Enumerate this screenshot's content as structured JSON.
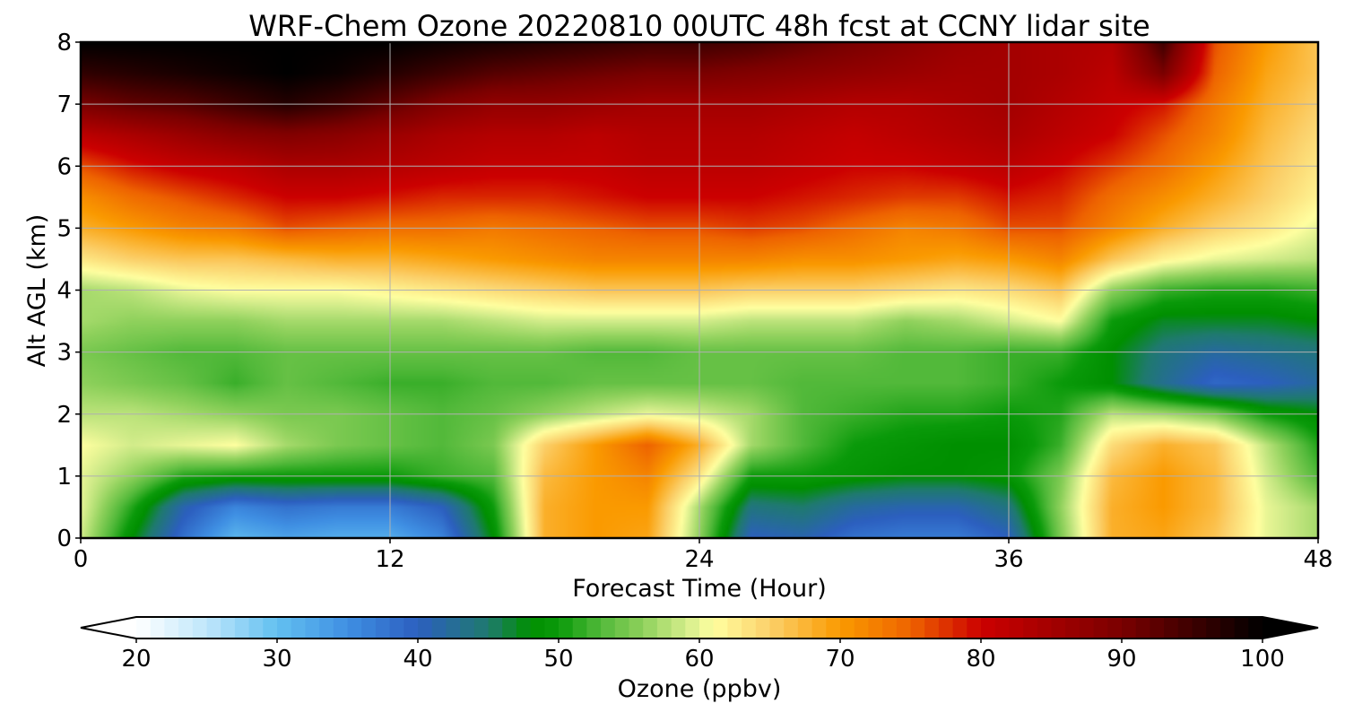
{
  "chart_data": {
    "type": "heatmap",
    "title": "WRF-Chem Ozone  20220810 00UTC 48h fcst at CCNY lidar site",
    "xlabel": "Forecast Time (Hour)",
    "ylabel": "Alt AGL (km)",
    "xlim": [
      0,
      48
    ],
    "ylim": [
      0,
      8
    ],
    "xticks": [
      0,
      12,
      24,
      36,
      48
    ],
    "yticks": [
      0,
      1,
      2,
      3,
      4,
      5,
      6,
      7,
      8
    ],
    "grid": true,
    "colorbar": {
      "label": "Ozone  (ppbv)",
      "range": [
        20,
        100
      ],
      "ticks": [
        20,
        30,
        40,
        50,
        60,
        70,
        80,
        90,
        100
      ],
      "extend": "both",
      "under_color": "#ffffff",
      "over_color": "#000000",
      "stops": [
        [
          20,
          "#ffffff"
        ],
        [
          25,
          "#bfe6fb"
        ],
        [
          30,
          "#62c0f0"
        ],
        [
          35,
          "#3f8fe3"
        ],
        [
          40,
          "#2c5fbf"
        ],
        [
          45,
          "#1f7a6e"
        ],
        [
          48,
          "#008f00"
        ],
        [
          50,
          "#0a9a0a"
        ],
        [
          53,
          "#52b93a"
        ],
        [
          56,
          "#8fd15c"
        ],
        [
          59,
          "#d2ec8a"
        ],
        [
          61,
          "#ffffa0"
        ],
        [
          65,
          "#fbd06a"
        ],
        [
          70,
          "#fa9a00"
        ],
        [
          75,
          "#ee6300"
        ],
        [
          80,
          "#cc0000"
        ],
        [
          90,
          "#7a0000"
        ],
        [
          100,
          "#000000"
        ]
      ]
    },
    "x": [
      0,
      2,
      4,
      6,
      8,
      10,
      12,
      14,
      16,
      18,
      20,
      22,
      24,
      26,
      28,
      30,
      32,
      34,
      36,
      38,
      40,
      42,
      44,
      46,
      48
    ],
    "y": [
      0,
      0.5,
      1,
      1.5,
      2,
      2.5,
      3,
      3.5,
      4,
      4.5,
      5,
      5.5,
      6,
      6.5,
      7,
      7.5,
      8
    ],
    "z": [
      [
        59,
        48,
        38,
        31,
        33,
        32,
        32,
        36,
        48,
        68,
        70,
        69,
        56,
        40,
        41,
        38,
        37,
        37,
        40,
        55,
        68,
        69,
        66,
        60,
        57
      ],
      [
        60,
        51,
        41,
        36,
        38,
        37,
        37,
        40,
        50,
        68,
        70,
        70,
        57,
        44,
        45,
        42,
        41,
        41,
        44,
        56,
        68,
        70,
        67,
        60,
        57
      ],
      [
        60,
        56,
        51,
        50,
        50,
        50,
        50,
        52,
        53,
        67,
        70,
        72,
        63,
        50,
        50,
        49,
        48,
        48,
        49,
        55,
        67,
        70,
        67,
        59,
        53
      ],
      [
        61,
        59,
        60,
        61,
        57,
        55,
        54,
        53,
        55,
        65,
        70,
        75,
        68,
        57,
        53,
        50,
        49,
        48,
        48,
        52,
        64,
        68,
        66,
        58,
        51
      ],
      [
        58,
        58,
        57,
        56,
        55,
        55,
        54,
        53,
        54,
        56,
        58,
        60,
        59,
        57,
        53,
        52,
        51,
        51,
        50,
        51,
        58,
        57,
        55,
        50,
        48
      ],
      [
        56,
        55,
        54,
        52,
        54,
        53,
        52,
        52,
        53,
        53,
        54,
        54,
        54,
        54,
        53,
        53,
        53,
        53,
        52,
        50,
        48,
        43,
        39,
        40,
        42
      ],
      [
        55,
        54,
        53,
        53,
        54,
        54,
        54,
        54,
        54,
        54,
        53,
        53,
        54,
        54,
        54,
        54,
        53,
        53,
        52,
        52,
        48,
        44,
        42,
        43,
        44
      ],
      [
        57,
        56,
        56,
        56,
        57,
        57,
        57,
        57,
        58,
        59,
        59,
        59,
        59,
        58,
        58,
        58,
        56,
        57,
        59,
        61,
        50,
        47,
        47,
        47,
        48
      ],
      [
        57,
        58,
        60,
        61,
        61,
        61,
        62,
        63,
        64,
        65,
        66,
        66,
        66,
        65,
        65,
        65,
        64,
        63,
        64,
        66,
        56,
        52,
        51,
        51,
        52
      ],
      [
        63,
        65,
        66,
        66,
        67,
        68,
        68,
        69,
        70,
        71,
        72,
        72,
        72,
        72,
        71,
        71,
        70,
        69,
        70,
        72,
        66,
        62,
        60,
        59,
        58
      ],
      [
        68,
        70,
        72,
        73,
        76,
        75,
        74,
        74,
        73,
        74,
        75,
        76,
        76,
        77,
        76,
        74,
        72,
        73,
        76,
        76,
        72,
        68,
        65,
        63,
        60
      ],
      [
        71,
        74,
        76,
        78,
        80,
        80,
        79,
        78,
        78,
        78,
        79,
        80,
        80,
        80,
        79,
        78,
        77,
        77,
        79,
        78,
        74,
        71,
        68,
        65,
        62
      ],
      [
        76,
        79,
        81,
        82,
        84,
        84,
        83,
        82,
        81,
        81,
        81,
        82,
        82,
        82,
        81,
        80,
        80,
        81,
        82,
        80,
        77,
        74,
        70,
        66,
        63
      ],
      [
        82,
        84,
        86,
        88,
        89,
        88,
        86,
        84,
        83,
        83,
        82,
        83,
        83,
        83,
        82,
        81,
        82,
        83,
        84,
        82,
        80,
        76,
        72,
        67,
        64
      ],
      [
        90,
        92,
        93,
        95,
        97,
        95,
        92,
        89,
        87,
        87,
        86,
        85,
        85,
        85,
        84,
        83,
        83,
        84,
        85,
        83,
        81,
        79,
        73,
        68,
        65
      ],
      [
        96,
        97,
        98,
        99,
        100,
        99,
        97,
        95,
        93,
        92,
        91,
        90,
        90,
        89,
        88,
        87,
        86,
        85,
        85,
        84,
        82,
        90,
        75,
        69,
        66
      ],
      [
        100,
        100,
        100,
        100,
        100,
        100,
        100,
        99,
        98,
        97,
        96,
        95,
        95,
        94,
        92,
        90,
        88,
        86,
        85,
        84,
        83,
        95,
        76,
        70,
        66
      ]
    ]
  }
}
